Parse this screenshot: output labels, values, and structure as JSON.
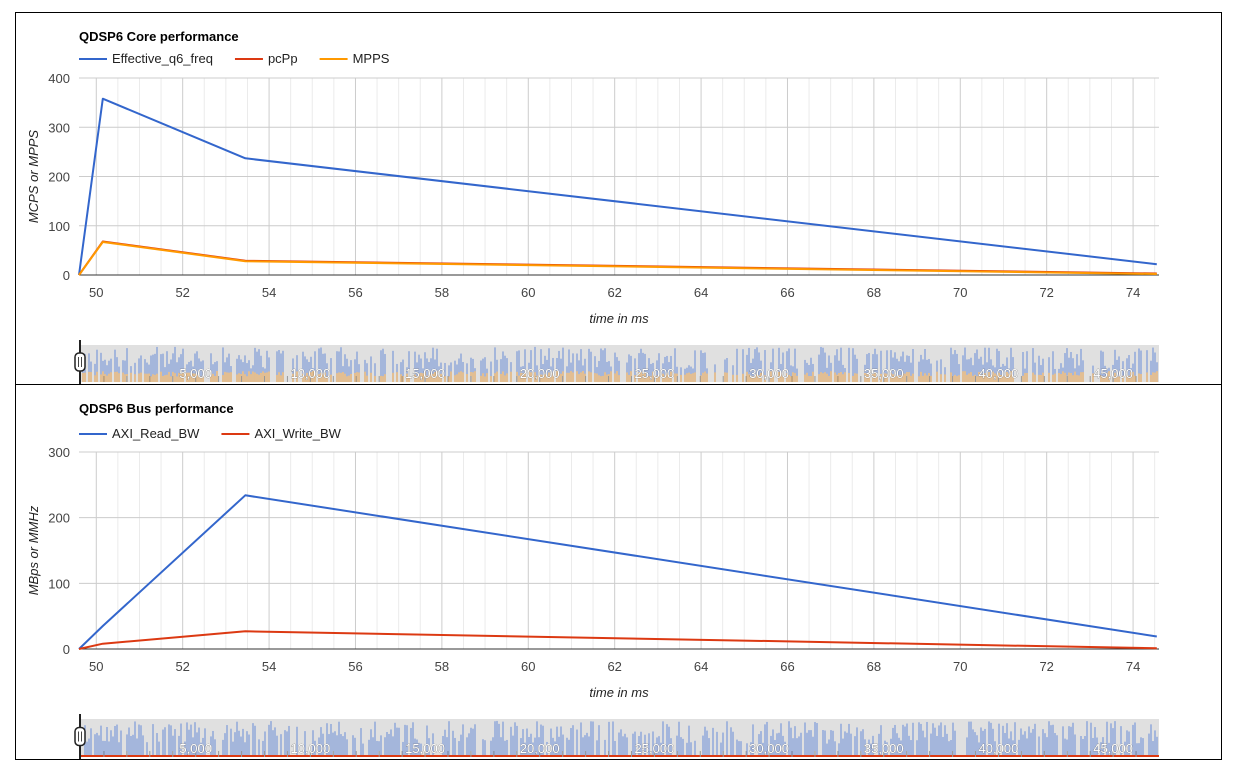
{
  "colors": {
    "blue": "#3366cc",
    "red": "#dc3912",
    "orange": "#ff9900",
    "grid": "#cccccc",
    "minor_grid": "#ebebeb",
    "range_bg": "#e0e0e0",
    "range_blue": "#7d9ad8",
    "range_orange": "#f0b060"
  },
  "chart_data": [
    {
      "type": "line",
      "title": "QDSP6 Core performance",
      "xlabel": "time in ms",
      "ylabel": "MCPS or MPPS",
      "xlim": [
        49.6,
        74.6
      ],
      "ylim": [
        0,
        400
      ],
      "xticks": [
        50,
        52,
        54,
        56,
        58,
        60,
        62,
        64,
        66,
        68,
        70,
        72,
        74
      ],
      "yticks": [
        0,
        100,
        200,
        300,
        400
      ],
      "legend_position": "top-left",
      "series": [
        {
          "name": "Effective_q6_freq",
          "color_key": "blue",
          "x": [
            49.6,
            50.15,
            53.45,
            74.55
          ],
          "y": [
            0,
            358,
            237,
            22
          ]
        },
        {
          "name": "pcPp",
          "color_key": "red",
          "x": [
            49.6,
            50.15,
            53.45,
            74.55
          ],
          "y": [
            0,
            68,
            29,
            3
          ]
        },
        {
          "name": "MPPS",
          "color_key": "orange",
          "x": [
            49.6,
            50.15,
            53.45,
            74.55
          ],
          "y": [
            0,
            67,
            28,
            2
          ]
        }
      ]
    },
    {
      "type": "line",
      "title": "QDSP6 Bus performance",
      "xlabel": "time in ms",
      "ylabel": "MBps or MMHz",
      "xlim": [
        49.6,
        74.6
      ],
      "ylim": [
        0,
        300
      ],
      "xticks": [
        50,
        52,
        54,
        56,
        58,
        60,
        62,
        64,
        66,
        68,
        70,
        72,
        74
      ],
      "yticks": [
        0,
        100,
        200,
        300
      ],
      "legend_position": "top-left",
      "series": [
        {
          "name": "AXI_Read_BW",
          "color_key": "blue",
          "x": [
            49.6,
            50.15,
            53.45,
            74.55
          ],
          "y": [
            0,
            35,
            234,
            19
          ]
        },
        {
          "name": "AXI_Write_BW",
          "color_key": "red",
          "x": [
            49.6,
            50.15,
            53.45,
            74.55
          ],
          "y": [
            0,
            8,
            27,
            1
          ]
        }
      ]
    }
  ],
  "range_slider": {
    "labels": [
      "5,000",
      "10,000",
      "15,000",
      "20,000",
      "25,000",
      "30,000",
      "35,000",
      "40,000",
      "45,000"
    ],
    "label_values": [
      5000,
      10000,
      15000,
      20000,
      25000,
      30000,
      35000,
      40000,
      45000
    ],
    "xlim": [
      0,
      47000
    ]
  }
}
